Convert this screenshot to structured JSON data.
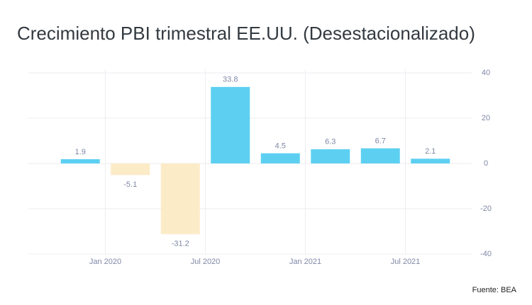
{
  "chart_data": {
    "type": "bar",
    "title": "Crecimiento PBI trimestral EE.UU. (Desestacionalizado)",
    "source": "Fuente: BEA",
    "categories": [
      null,
      null,
      null,
      null,
      null,
      null,
      null,
      null
    ],
    "values": [
      1.9,
      -5.1,
      -31.2,
      33.8,
      4.5,
      6.3,
      6.7,
      2.1
    ],
    "positive_color": "#5dd0f2",
    "negative_color": "#fcebc7",
    "xticks": [
      "Jan 2020",
      "Jul 2020",
      "Jan 2021",
      "Jul 2021"
    ],
    "ylim": [
      -40,
      40
    ],
    "yticks": [
      -40,
      -20,
      0,
      20,
      40
    ],
    "grid": true
  }
}
